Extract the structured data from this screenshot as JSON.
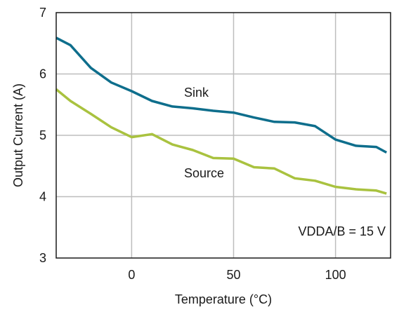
{
  "chart_data": {
    "type": "line",
    "xlabel": "Temperature (°C)",
    "ylabel": "Output Current (A)",
    "xlim": [
      -37,
      127
    ],
    "ylim": [
      3,
      7
    ],
    "xticks": [
      0,
      50,
      100
    ],
    "yticks": [
      3,
      4,
      5,
      6,
      7
    ],
    "grid": true,
    "series": [
      {
        "name": "Sink",
        "color": "#0e6e8c",
        "x": [
          -37,
          -30,
          -20,
          -10,
          0,
          10,
          20,
          30,
          40,
          50,
          60,
          70,
          80,
          90,
          100,
          110,
          120,
          125
        ],
        "y": [
          6.59,
          6.47,
          6.1,
          5.86,
          5.72,
          5.56,
          5.47,
          5.44,
          5.4,
          5.37,
          5.29,
          5.22,
          5.21,
          5.15,
          4.93,
          4.83,
          4.81,
          4.72
        ]
      },
      {
        "name": "Source",
        "color": "#a9c23f",
        "x": [
          -37,
          -30,
          -20,
          -10,
          0,
          10,
          20,
          30,
          40,
          50,
          60,
          70,
          80,
          90,
          100,
          110,
          120,
          125
        ],
        "y": [
          5.75,
          5.56,
          5.35,
          5.13,
          4.97,
          5.02,
          4.85,
          4.76,
          4.63,
          4.62,
          4.48,
          4.46,
          4.3,
          4.26,
          4.16,
          4.12,
          4.1,
          4.05
        ]
      }
    ],
    "annotation": "VDDA/B = 15 V"
  }
}
